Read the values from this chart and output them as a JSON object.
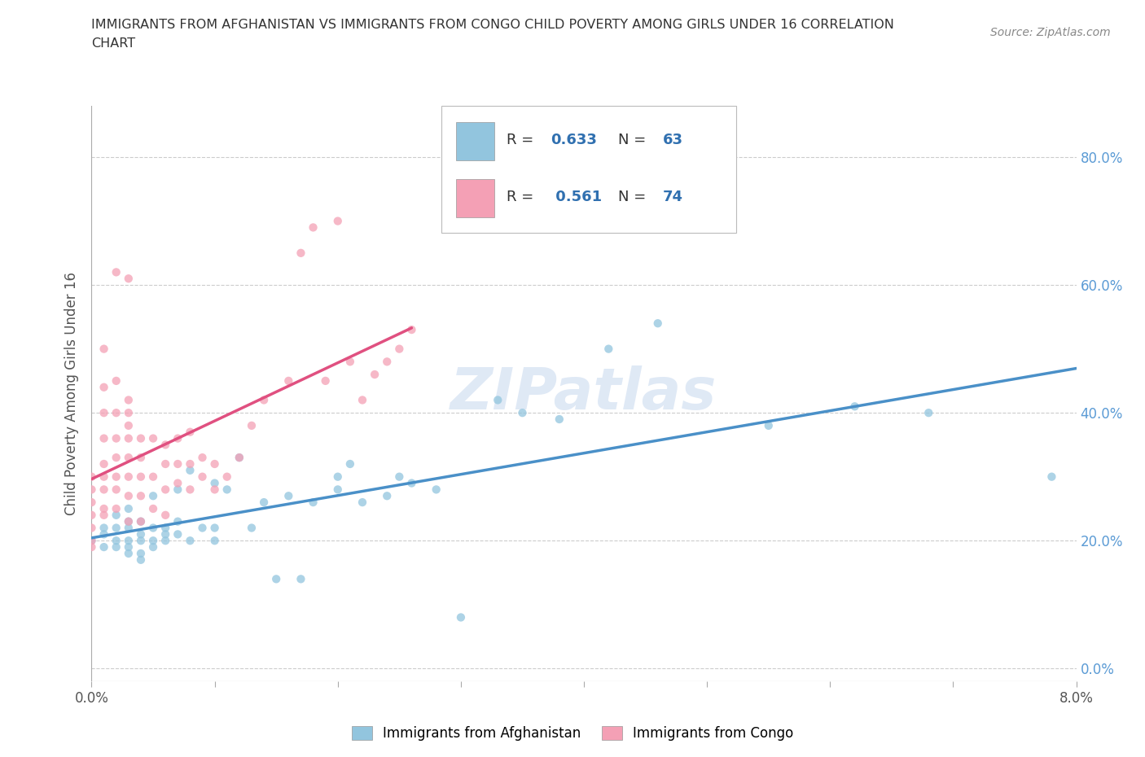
{
  "title_line1": "IMMIGRANTS FROM AFGHANISTAN VS IMMIGRANTS FROM CONGO CHILD POVERTY AMONG GIRLS UNDER 16 CORRELATION",
  "title_line2": "CHART",
  "source_text": "Source: ZipAtlas.com",
  "ylabel": "Child Poverty Among Girls Under 16",
  "x_label_bottom": "Immigrants from Afghanistan",
  "x_label_bottom2": "Immigrants from Congo",
  "xlim": [
    0.0,
    0.08
  ],
  "ylim": [
    -0.02,
    0.88
  ],
  "x_ticks": [
    0.0,
    0.01,
    0.02,
    0.03,
    0.04,
    0.05,
    0.06,
    0.07,
    0.08
  ],
  "y_ticks": [
    0.0,
    0.2,
    0.4,
    0.6,
    0.8
  ],
  "afghanistan_color": "#92C5DE",
  "congo_color": "#F4A0B5",
  "afghanistan_line_color": "#4A90C8",
  "congo_line_color": "#E05080",
  "legend_R_afghanistan": "0.633",
  "legend_N_afghanistan": "63",
  "legend_R_congo": "0.561",
  "legend_N_congo": "74",
  "watermark": "ZIPatlas",
  "background_color": "#ffffff",
  "grid_color": "#cccccc",
  "afghanistan_x": [
    0.0,
    0.001,
    0.001,
    0.001,
    0.002,
    0.002,
    0.002,
    0.002,
    0.003,
    0.003,
    0.003,
    0.003,
    0.003,
    0.003,
    0.004,
    0.004,
    0.004,
    0.004,
    0.004,
    0.005,
    0.005,
    0.005,
    0.005,
    0.006,
    0.006,
    0.006,
    0.007,
    0.007,
    0.007,
    0.008,
    0.008,
    0.009,
    0.01,
    0.01,
    0.01,
    0.011,
    0.012,
    0.013,
    0.014,
    0.015,
    0.016,
    0.017,
    0.018,
    0.02,
    0.02,
    0.021,
    0.022,
    0.024,
    0.025,
    0.026,
    0.028,
    0.03,
    0.033,
    0.035,
    0.038,
    0.042,
    0.046,
    0.055,
    0.062,
    0.068,
    0.078
  ],
  "afghanistan_y": [
    0.2,
    0.19,
    0.22,
    0.21,
    0.19,
    0.2,
    0.22,
    0.24,
    0.18,
    0.19,
    0.2,
    0.22,
    0.23,
    0.25,
    0.17,
    0.18,
    0.2,
    0.21,
    0.23,
    0.19,
    0.2,
    0.22,
    0.27,
    0.2,
    0.21,
    0.22,
    0.21,
    0.23,
    0.28,
    0.2,
    0.31,
    0.22,
    0.2,
    0.22,
    0.29,
    0.28,
    0.33,
    0.22,
    0.26,
    0.14,
    0.27,
    0.14,
    0.26,
    0.28,
    0.3,
    0.32,
    0.26,
    0.27,
    0.3,
    0.29,
    0.28,
    0.08,
    0.42,
    0.4,
    0.39,
    0.5,
    0.54,
    0.38,
    0.41,
    0.4,
    0.3
  ],
  "congo_x": [
    0.0,
    0.0,
    0.0,
    0.0,
    0.0,
    0.0,
    0.0,
    0.001,
    0.001,
    0.001,
    0.001,
    0.001,
    0.001,
    0.001,
    0.001,
    0.001,
    0.002,
    0.002,
    0.002,
    0.002,
    0.002,
    0.002,
    0.002,
    0.002,
    0.003,
    0.003,
    0.003,
    0.003,
    0.003,
    0.003,
    0.003,
    0.003,
    0.003,
    0.004,
    0.004,
    0.004,
    0.004,
    0.004,
    0.005,
    0.005,
    0.005,
    0.006,
    0.006,
    0.006,
    0.006,
    0.007,
    0.007,
    0.007,
    0.008,
    0.008,
    0.008,
    0.009,
    0.009,
    0.01,
    0.01,
    0.011,
    0.012,
    0.013,
    0.014,
    0.016,
    0.017,
    0.018,
    0.019,
    0.02,
    0.021,
    0.022,
    0.023,
    0.024,
    0.025,
    0.026
  ],
  "congo_y": [
    0.2,
    0.22,
    0.24,
    0.26,
    0.28,
    0.3,
    0.19,
    0.24,
    0.25,
    0.28,
    0.3,
    0.32,
    0.36,
    0.4,
    0.44,
    0.5,
    0.25,
    0.28,
    0.3,
    0.33,
    0.36,
    0.4,
    0.45,
    0.62,
    0.23,
    0.27,
    0.3,
    0.33,
    0.36,
    0.38,
    0.4,
    0.42,
    0.61,
    0.23,
    0.27,
    0.3,
    0.33,
    0.36,
    0.25,
    0.3,
    0.36,
    0.24,
    0.28,
    0.32,
    0.35,
    0.29,
    0.32,
    0.36,
    0.28,
    0.32,
    0.37,
    0.3,
    0.33,
    0.28,
    0.32,
    0.3,
    0.33,
    0.38,
    0.42,
    0.45,
    0.65,
    0.69,
    0.45,
    0.7,
    0.48,
    0.42,
    0.46,
    0.48,
    0.5,
    0.53
  ]
}
